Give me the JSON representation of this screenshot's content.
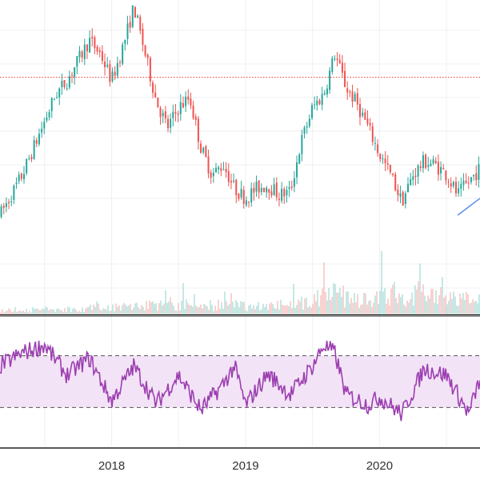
{
  "colors": {
    "background": "#ffffff",
    "grid": "#eef0f3",
    "up": "#26a69a",
    "down": "#ef5350",
    "volume_up": "#9fd9d2",
    "volume_down": "#f5b5b3",
    "resistance_line": "#e53935",
    "trend_line": "#5b8def",
    "rsi_line": "#9c3fb0",
    "rsi_band_fill": "#f3e3f7",
    "rsi_band_border": "#555555",
    "separator": "#222222",
    "axis_text": "#333333"
  },
  "chart_data": [
    {
      "type": "candlestick",
      "x_tick_labels": [
        "2018",
        "2019",
        "2020"
      ],
      "x_range": [
        "2017-03",
        "2020-10"
      ],
      "y_range": [
        0.35,
        1.04
      ],
      "resistance_level": 0.81,
      "trend_line_segment": {
        "x": [
          "2020-08",
          "2020-10"
        ],
        "y": [
          0.4,
          0.45
        ]
      },
      "close_path": [
        [
          "2017-03",
          0.4
        ],
        [
          "2017-05",
          0.52
        ],
        [
          "2017-07",
          0.68
        ],
        [
          "2017-08",
          0.76
        ],
        [
          "2017-09",
          0.8
        ],
        [
          "2017-10",
          0.86
        ],
        [
          "2017-11",
          0.92
        ],
        [
          "2017-12",
          0.88
        ],
        [
          "2018-01",
          0.8
        ],
        [
          "2018-02",
          0.9
        ],
        [
          "2018-03",
          1.02
        ],
        [
          "2018-04",
          0.88
        ],
        [
          "2018-05",
          0.74
        ],
        [
          "2018-06",
          0.66
        ],
        [
          "2018-07",
          0.72
        ],
        [
          "2018-08",
          0.75
        ],
        [
          "2018-09",
          0.6
        ],
        [
          "2018-10",
          0.52
        ],
        [
          "2018-11",
          0.55
        ],
        [
          "2018-12",
          0.48
        ],
        [
          "2019-01",
          0.45
        ],
        [
          "2019-02",
          0.48
        ],
        [
          "2019-03",
          0.49
        ],
        [
          "2019-04",
          0.46
        ],
        [
          "2019-05",
          0.47
        ],
        [
          "2019-06",
          0.62
        ],
        [
          "2019-07",
          0.72
        ],
        [
          "2019-08",
          0.76
        ],
        [
          "2019-09",
          0.88
        ],
        [
          "2019-10",
          0.78
        ],
        [
          "2019-11",
          0.73
        ],
        [
          "2019-12",
          0.66
        ],
        [
          "2020-01",
          0.58
        ],
        [
          "2020-02",
          0.52
        ],
        [
          "2020-03",
          0.44
        ],
        [
          "2020-04",
          0.52
        ],
        [
          "2020-05",
          0.56
        ],
        [
          "2020-06",
          0.55
        ],
        [
          "2020-07",
          0.52
        ],
        [
          "2020-08",
          0.46
        ],
        [
          "2020-09",
          0.5
        ],
        [
          "2020-10",
          0.54
        ]
      ]
    },
    {
      "type": "bar",
      "series_name": "volume",
      "note_scale": "relative",
      "activity_path": [
        [
          "2017-03",
          0.08
        ],
        [
          "2017-09",
          0.1
        ],
        [
          "2018-03",
          0.16
        ],
        [
          "2018-09",
          0.18
        ],
        [
          "2019-03",
          0.16
        ],
        [
          "2019-06",
          0.22
        ],
        [
          "2019-09",
          0.38
        ],
        [
          "2019-12",
          0.3
        ],
        [
          "2020-03",
          0.42
        ],
        [
          "2020-06",
          0.34
        ],
        [
          "2020-10",
          0.25
        ]
      ]
    },
    {
      "type": "line",
      "series_name": "rsi",
      "y_range": [
        0,
        100
      ],
      "band_upper": 70,
      "band_lower": 30,
      "rsi_path": [
        [
          "2017-03",
          62
        ],
        [
          "2017-05",
          72
        ],
        [
          "2017-07",
          78
        ],
        [
          "2017-09",
          55
        ],
        [
          "2017-11",
          68
        ],
        [
          "2018-01",
          35
        ],
        [
          "2018-03",
          62
        ],
        [
          "2018-05",
          33
        ],
        [
          "2018-07",
          55
        ],
        [
          "2018-09",
          28
        ],
        [
          "2018-11",
          48
        ],
        [
          "2018-12",
          62
        ],
        [
          "2019-01",
          32
        ],
        [
          "2019-03",
          56
        ],
        [
          "2019-05",
          40
        ],
        [
          "2019-07",
          62
        ],
        [
          "2019-08",
          78
        ],
        [
          "2019-09",
          72
        ],
        [
          "2019-10",
          40
        ],
        [
          "2019-12",
          32
        ],
        [
          "2020-01",
          38
        ],
        [
          "2020-03",
          25
        ],
        [
          "2020-05",
          60
        ],
        [
          "2020-07",
          55
        ],
        [
          "2020-09",
          25
        ],
        [
          "2020-10",
          52
        ]
      ]
    }
  ]
}
